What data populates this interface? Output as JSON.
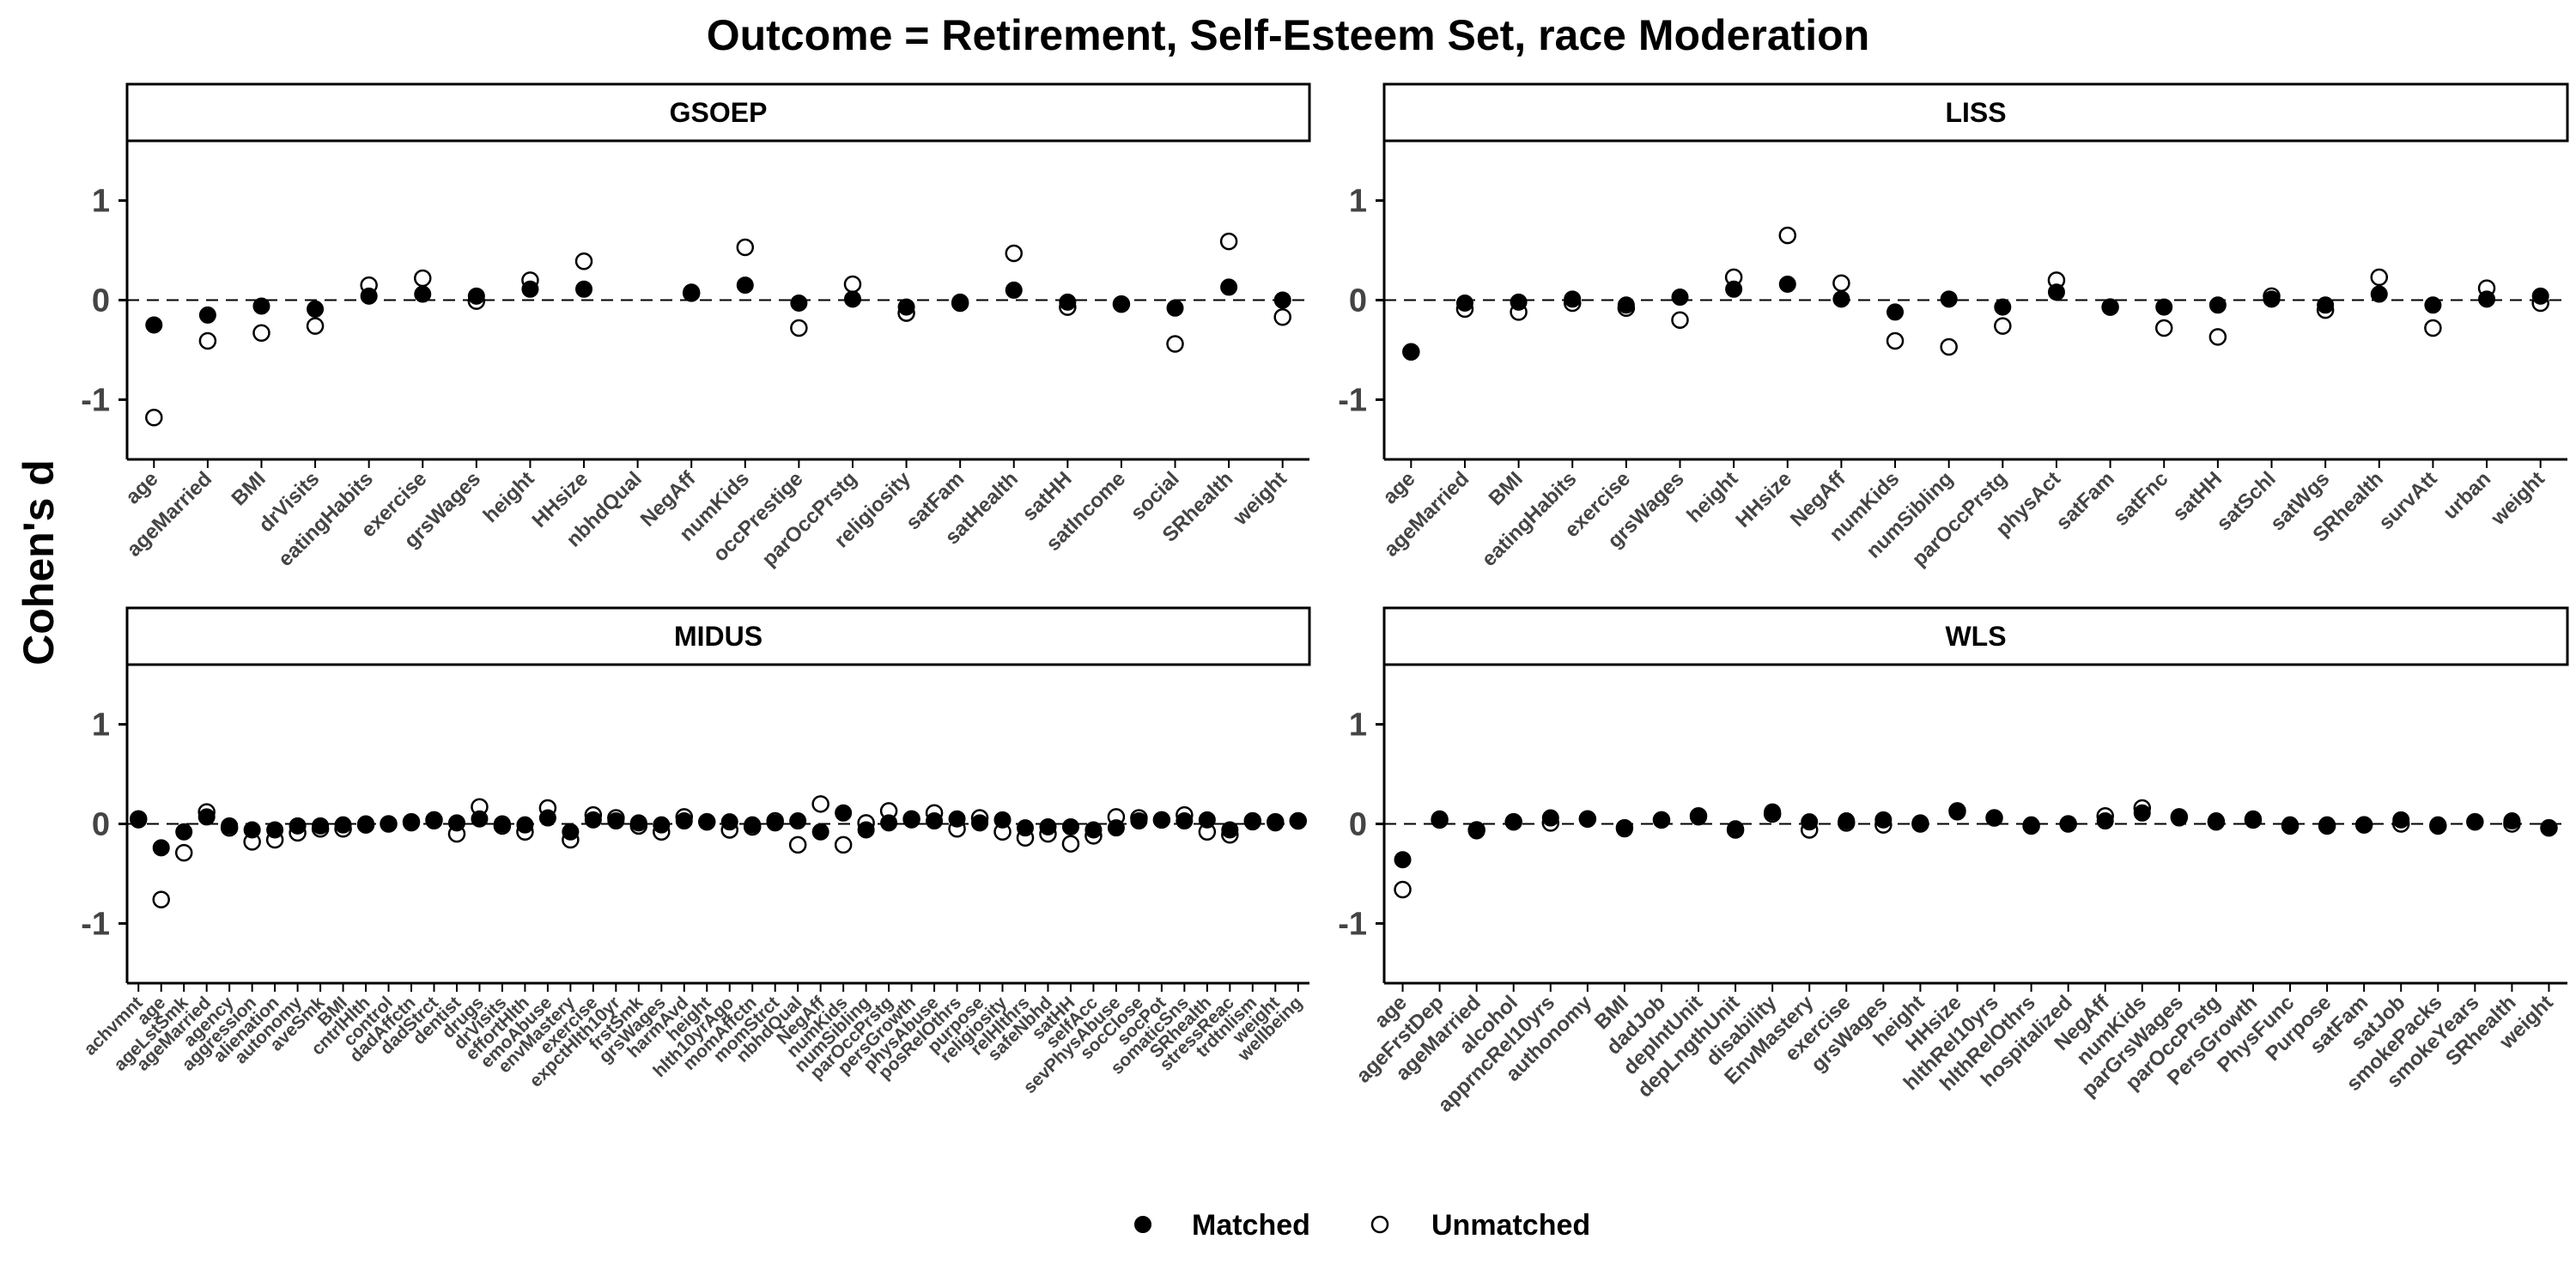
{
  "title": "Outcome = Retirement, Self-Esteem Set, race Moderation",
  "ylabel": "Cohen's d",
  "legend": {
    "position": "bottom",
    "items": [
      {
        "name": "Matched",
        "marker": "filled-circle"
      },
      {
        "name": "Unmatched",
        "marker": "open-circle"
      }
    ]
  },
  "colors": {
    "point": "#000000",
    "reference_line": "#000000"
  },
  "chart_data": [
    {
      "type": "scatter",
      "panel": "GSOEP",
      "ylim": [
        -1.6,
        1.6
      ],
      "yticks": [
        -1,
        0,
        1
      ],
      "reference_line_y": 0,
      "categories": [
        "age",
        "ageMarried",
        "BMI",
        "drVisits",
        "eatingHabits",
        "exercise",
        "grsWages",
        "height",
        "HHsize",
        "nbhdQual",
        "NegAff",
        "numKids",
        "occPrestige",
        "parOccPrstg",
        "religiosity",
        "satFam",
        "satHealth",
        "satHH",
        "satIncome",
        "social",
        "SRhealth",
        "weight"
      ],
      "series": [
        {
          "name": "Matched",
          "values": [
            -0.25,
            -0.15,
            -0.06,
            -0.09,
            0.04,
            0.06,
            0.04,
            0.11,
            0.11,
            null,
            0.08,
            0.15,
            -0.03,
            0.01,
            -0.07,
            -0.02,
            0.1,
            -0.02,
            -0.04,
            -0.08,
            0.13,
            0.0
          ]
        },
        {
          "name": "Unmatched",
          "values": [
            -1.18,
            -0.41,
            -0.33,
            -0.26,
            0.15,
            0.22,
            -0.01,
            0.2,
            0.39,
            null,
            0.07,
            0.53,
            -0.28,
            0.16,
            -0.13,
            -0.03,
            0.47,
            -0.07,
            -0.04,
            -0.44,
            0.59,
            -0.17
          ]
        }
      ]
    },
    {
      "type": "scatter",
      "panel": "LISS",
      "ylim": [
        -1.6,
        1.6
      ],
      "yticks": [
        -1,
        0,
        1
      ],
      "reference_line_y": 0,
      "categories": [
        "age",
        "ageMarried",
        "BMI",
        "eatingHabits",
        "exercise",
        "grsWages",
        "height",
        "HHsize",
        "NegAff",
        "numKids",
        "numSibling",
        "parOccPrstg",
        "physAct",
        "satFam",
        "satFnc",
        "satHH",
        "satSchl",
        "satWgs",
        "SRhealth",
        "survAtt",
        "urban",
        "weight"
      ],
      "series": [
        {
          "name": "Matched",
          "values": [
            -0.52,
            -0.03,
            -0.02,
            0.01,
            -0.05,
            0.03,
            0.11,
            0.16,
            0.01,
            -0.12,
            0.01,
            -0.07,
            0.08,
            -0.07,
            -0.07,
            -0.05,
            0.01,
            -0.05,
            0.06,
            -0.05,
            0.01,
            0.04
          ]
        },
        {
          "name": "Unmatched",
          "values": [
            -0.52,
            -0.09,
            -0.12,
            -0.03,
            -0.08,
            -0.2,
            0.23,
            0.65,
            0.17,
            -0.41,
            -0.47,
            -0.26,
            0.2,
            -0.07,
            -0.28,
            -0.37,
            0.04,
            -0.1,
            0.23,
            -0.28,
            0.12,
            -0.03
          ]
        }
      ]
    },
    {
      "type": "scatter",
      "panel": "MIDUS",
      "ylim": [
        -1.6,
        1.6
      ],
      "yticks": [
        -1,
        0,
        1
      ],
      "reference_line_y": 0,
      "categories": [
        "achvmnt",
        "age",
        "ageLstSmk",
        "ageMarried",
        "agency",
        "aggression",
        "alienation",
        "autonomy",
        "aveSmk",
        "BMI",
        "cntrlHlth",
        "control",
        "dadAffctn",
        "dadStrct",
        "dentist",
        "drugs",
        "drVisits",
        "effortHlth",
        "emoAbuse",
        "envMastery",
        "exercise",
        "expctHlth10yr",
        "frstSmk",
        "grsWages",
        "harmAvd",
        "height",
        "hlth10yrAgo",
        "momAffctn",
        "momStrct",
        "nbhdQual",
        "NegAff",
        "numKids",
        "numSibling",
        "parOccPrstg",
        "persGrowth",
        "physAbuse",
        "posRelOthrs",
        "purpose",
        "religiosity",
        "relHlthrs",
        "safeNbhd",
        "satHH",
        "selfAcc",
        "sevPhysAbuse",
        "socClose",
        "socPot",
        "somaticSns",
        "SRhealth",
        "stressReac",
        "trdtnlism",
        "weight",
        "wellbeing"
      ],
      "series": [
        {
          "name": "Matched",
          "values": [
            0.04,
            -0.24,
            -0.08,
            0.07,
            -0.02,
            -0.06,
            -0.06,
            -0.02,
            -0.02,
            -0.01,
            0.0,
            0.0,
            0.01,
            0.03,
            0.01,
            0.05,
            0.0,
            -0.01,
            0.06,
            -0.08,
            0.04,
            0.03,
            0.01,
            -0.01,
            0.03,
            0.02,
            0.02,
            -0.01,
            0.01,
            0.03,
            -0.08,
            0.11,
            -0.06,
            0.01,
            0.04,
            0.03,
            0.05,
            0.01,
            0.04,
            -0.04,
            -0.03,
            -0.03,
            -0.06,
            -0.04,
            0.03,
            0.04,
            0.03,
            0.04,
            -0.06,
            0.02,
            0.01,
            0.03
          ]
        },
        {
          "name": "Unmatched",
          "values": [
            0.05,
            -0.76,
            -0.29,
            0.12,
            -0.04,
            -0.18,
            -0.16,
            -0.09,
            -0.05,
            -0.05,
            -0.01,
            0.0,
            0.02,
            0.04,
            -0.1,
            0.17,
            -0.02,
            -0.08,
            0.16,
            -0.16,
            0.09,
            0.06,
            -0.02,
            -0.08,
            0.07,
            0.02,
            -0.06,
            -0.03,
            0.03,
            -0.21,
            0.2,
            -0.21,
            0.01,
            0.13,
            0.05,
            0.11,
            -0.05,
            0.06,
            -0.08,
            -0.14,
            -0.1,
            -0.2,
            -0.12,
            0.07,
            0.06,
            0.04,
            0.09,
            -0.08,
            -0.11,
            0.03,
            0.02,
            0.03
          ]
        }
      ]
    },
    {
      "type": "scatter",
      "panel": "WLS",
      "ylim": [
        -1.6,
        1.6
      ],
      "yticks": [
        -1,
        0,
        1
      ],
      "reference_line_y": 0,
      "categories": [
        "age",
        "ageFrstDep",
        "ageMarried",
        "alcohol",
        "apprncRel10yrs",
        "authonomy",
        "BMI",
        "dadJob",
        "depIntUnit",
        "depLngthUnit",
        "disability",
        "EnvMastery",
        "exercise",
        "grsWages",
        "height",
        "HHsize",
        "hlthRel10yrs",
        "hlthRelOthrs",
        "hospitalized",
        "NegAff",
        "numKids",
        "parGrsWages",
        "parOccPrstg",
        "PersGrowth",
        "PhysFunc",
        "Purpose",
        "satFam",
        "satJob",
        "smokePacks",
        "smokeYears",
        "SRhealth",
        "weight"
      ],
      "series": [
        {
          "name": "Matched",
          "values": [
            -0.36,
            0.05,
            -0.07,
            0.02,
            0.06,
            0.05,
            -0.05,
            0.04,
            0.07,
            -0.05,
            0.12,
            0.02,
            0.03,
            0.04,
            0.01,
            0.12,
            0.06,
            -0.01,
            0.0,
            0.03,
            0.11,
            0.06,
            0.03,
            0.05,
            -0.01,
            -0.01,
            -0.01,
            0.04,
            -0.01,
            0.02,
            0.03,
            -0.04
          ]
        },
        {
          "name": "Unmatched",
          "values": [
            -0.66,
            0.04,
            -0.06,
            0.02,
            0.01,
            0.05,
            -0.04,
            0.04,
            0.08,
            -0.06,
            0.1,
            -0.06,
            0.01,
            -0.01,
            0.0,
            0.13,
            0.06,
            -0.02,
            0.0,
            0.08,
            0.16,
            0.07,
            0.02,
            0.04,
            -0.02,
            -0.02,
            -0.01,
            0.0,
            -0.02,
            0.02,
            0.0,
            -0.04
          ]
        }
      ]
    }
  ]
}
